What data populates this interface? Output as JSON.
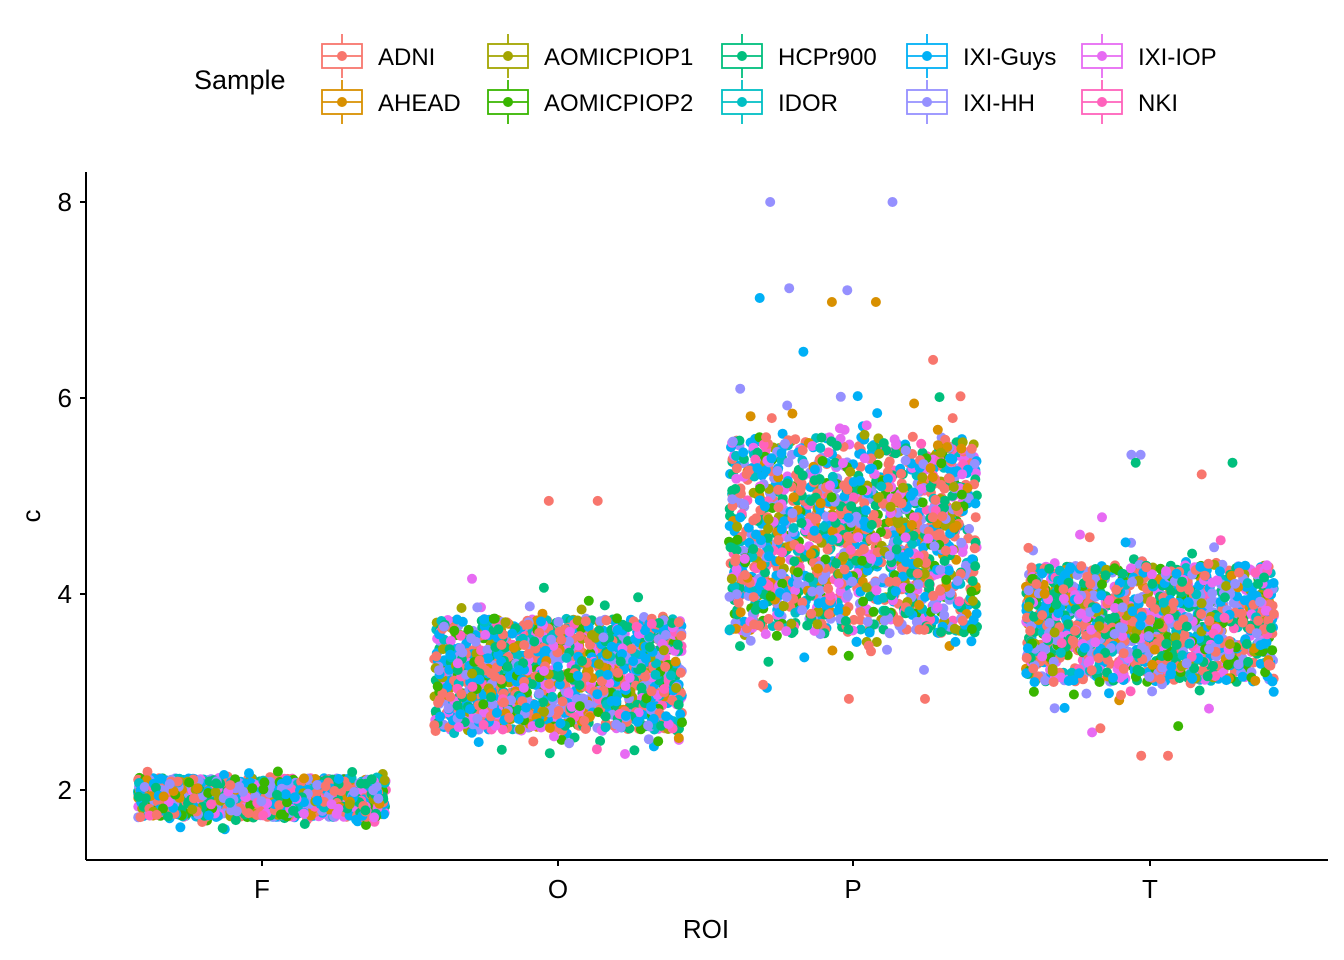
{
  "chart_data": {
    "type": "scatter",
    "subtype": "jittered points with boxplots",
    "xlabel": "ROI",
    "ylabel": "c",
    "categories": [
      "F",
      "O",
      "P",
      "T"
    ],
    "ylim": [
      1.3,
      8.3
    ],
    "yticks": [
      2,
      4,
      6,
      8
    ],
    "grid": false,
    "legend": {
      "title": "Sample",
      "position": "top",
      "entries": [
        "ADNI",
        "AHEAD",
        "AOMICPIOP1",
        "AOMICPIOP2",
        "HCPr900",
        "IDOR",
        "IXI-Guys",
        "IXI-HH",
        "IXI-IOP",
        "NKI"
      ]
    },
    "series_colors": {
      "ADNI": "#F8766D",
      "AHEAD": "#D89000",
      "AOMICPIOP1": "#A3A500",
      "AOMICPIOP2": "#39B600",
      "HCPr900": "#00BF7D",
      "IDOR": "#00BFC4",
      "IXI-Guys": "#00B0F6",
      "IXI-HH": "#9590FF",
      "IXI-IOP": "#E76BF3",
      "NKI": "#FF62BC"
    },
    "distributions": [
      {
        "category": "F",
        "core": [
          1.72,
          2.12
        ],
        "min": 1.6,
        "max": 2.28
      },
      {
        "category": "O",
        "core": [
          2.6,
          3.75
        ],
        "min": 2.28,
        "max": 4.95
      },
      {
        "category": "P",
        "core": [
          3.6,
          5.6
        ],
        "min": 2.93,
        "max": 8.0
      },
      {
        "category": "T",
        "core": [
          3.1,
          4.3
        ],
        "min": 2.35,
        "max": 5.42
      }
    ],
    "outliers": [
      {
        "category": "O",
        "series": "ADNI",
        "y": 4.95
      },
      {
        "category": "O",
        "series": "ADNI",
        "y": 4.95
      },
      {
        "category": "P",
        "series": "IXI-HH",
        "y": 8.0
      },
      {
        "category": "P",
        "series": "IXI-HH",
        "y": 8.0
      },
      {
        "category": "P",
        "series": "IXI-HH",
        "y": 7.1
      },
      {
        "category": "P",
        "series": "IXI-HH",
        "y": 7.12
      },
      {
        "category": "P",
        "series": "IXI-Guys",
        "y": 7.02
      },
      {
        "category": "P",
        "series": "AHEAD",
        "y": 6.98
      },
      {
        "category": "P",
        "series": "AHEAD",
        "y": 6.98
      },
      {
        "category": "P",
        "series": "ADNI",
        "y": 2.93
      },
      {
        "category": "T",
        "series": "IXI-HH",
        "y": 5.42
      },
      {
        "category": "T",
        "series": "IXI-HH",
        "y": 5.42
      },
      {
        "category": "T",
        "series": "HCPr900",
        "y": 5.34
      },
      {
        "category": "T",
        "series": "HCPr900",
        "y": 5.34
      },
      {
        "category": "T",
        "series": "ADNI",
        "y": 5.22
      },
      {
        "category": "T",
        "series": "ADNI",
        "y": 2.35
      },
      {
        "category": "T",
        "series": "ADNI",
        "y": 2.35
      },
      {
        "category": "T",
        "series": "ADNI",
        "y": 2.63
      }
    ]
  }
}
